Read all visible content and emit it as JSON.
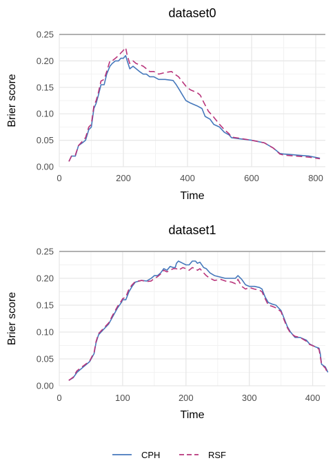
{
  "chart_data": [
    {
      "type": "line",
      "title": "dataset0",
      "xlabel": "Time",
      "ylabel": "Brier score",
      "xlim": [
        0,
        830
      ],
      "ylim": [
        0,
        0.25
      ],
      "xticks": [
        0,
        200,
        400,
        600,
        800
      ],
      "yticks": [
        0.0,
        0.05,
        0.1,
        0.15,
        0.2,
        0.25
      ],
      "xtick_labels": [
        "0",
        "200",
        "400",
        "600",
        "800"
      ],
      "ytick_labels": [
        "0.00",
        "0.05",
        "0.10",
        "0.15",
        "0.20",
        "0.25"
      ],
      "reference_line": 0.25,
      "grid": true,
      "series": [
        {
          "name": "CPH",
          "color": "#4477bb",
          "dash": "solid",
          "points": [
            [
              30,
              0.01
            ],
            [
              38,
              0.02
            ],
            [
              50,
              0.02
            ],
            [
              60,
              0.04
            ],
            [
              72,
              0.045
            ],
            [
              82,
              0.05
            ],
            [
              92,
              0.07
            ],
            [
              100,
              0.075
            ],
            [
              108,
              0.11
            ],
            [
              115,
              0.12
            ],
            [
              122,
              0.135
            ],
            [
              130,
              0.155
            ],
            [
              140,
              0.155
            ],
            [
              148,
              0.175
            ],
            [
              158,
              0.19
            ],
            [
              165,
              0.195
            ],
            [
              175,
              0.2
            ],
            [
              185,
              0.2
            ],
            [
              192,
              0.205
            ],
            [
              200,
              0.205
            ],
            [
              207,
              0.21
            ],
            [
              212,
              0.2
            ],
            [
              220,
              0.185
            ],
            [
              230,
              0.19
            ],
            [
              240,
              0.185
            ],
            [
              250,
              0.18
            ],
            [
              262,
              0.175
            ],
            [
              272,
              0.175
            ],
            [
              282,
              0.17
            ],
            [
              295,
              0.17
            ],
            [
              310,
              0.165
            ],
            [
              330,
              0.165
            ],
            [
              355,
              0.163
            ],
            [
              365,
              0.155
            ],
            [
              375,
              0.145
            ],
            [
              385,
              0.135
            ],
            [
              395,
              0.125
            ],
            [
              410,
              0.12
            ],
            [
              430,
              0.115
            ],
            [
              445,
              0.11
            ],
            [
              455,
              0.095
            ],
            [
              470,
              0.09
            ],
            [
              482,
              0.08
            ],
            [
              500,
              0.075
            ],
            [
              515,
              0.065
            ],
            [
              530,
              0.06
            ],
            [
              537,
              0.055
            ],
            [
              560,
              0.053
            ],
            [
              600,
              0.05
            ],
            [
              640,
              0.045
            ],
            [
              668,
              0.035
            ],
            [
              688,
              0.025
            ],
            [
              700,
              0.024
            ],
            [
              740,
              0.022
            ],
            [
              780,
              0.02
            ],
            [
              813,
              0.016
            ]
          ]
        },
        {
          "name": "RSF",
          "color": "#b8337a",
          "dash": "dashed",
          "points": [
            [
              30,
              0.01
            ],
            [
              38,
              0.02
            ],
            [
              50,
              0.022
            ],
            [
              60,
              0.04
            ],
            [
              72,
              0.048
            ],
            [
              82,
              0.055
            ],
            [
              92,
              0.075
            ],
            [
              100,
              0.08
            ],
            [
              108,
              0.115
            ],
            [
              115,
              0.125
            ],
            [
              122,
              0.14
            ],
            [
              130,
              0.162
            ],
            [
              140,
              0.165
            ],
            [
              148,
              0.18
            ],
            [
              158,
              0.2
            ],
            [
              165,
              0.2
            ],
            [
              175,
              0.205
            ],
            [
              185,
              0.21
            ],
            [
              192,
              0.215
            ],
            [
              200,
              0.22
            ],
            [
              207,
              0.225
            ],
            [
              212,
              0.21
            ],
            [
              220,
              0.195
            ],
            [
              230,
              0.2
            ],
            [
              240,
              0.195
            ],
            [
              250,
              0.193
            ],
            [
              262,
              0.19
            ],
            [
              272,
              0.185
            ],
            [
              282,
              0.18
            ],
            [
              295,
              0.18
            ],
            [
              310,
              0.175
            ],
            [
              330,
              0.178
            ],
            [
              350,
              0.18
            ],
            [
              360,
              0.175
            ],
            [
              372,
              0.17
            ],
            [
              385,
              0.16
            ],
            [
              398,
              0.15
            ],
            [
              410,
              0.145
            ],
            [
              430,
              0.14
            ],
            [
              440,
              0.135
            ],
            [
              452,
              0.12
            ],
            [
              465,
              0.105
            ],
            [
              480,
              0.095
            ],
            [
              500,
              0.08
            ],
            [
              515,
              0.07
            ],
            [
              530,
              0.062
            ],
            [
              537,
              0.056
            ],
            [
              560,
              0.054
            ],
            [
              600,
              0.05
            ],
            [
              640,
              0.045
            ],
            [
              668,
              0.035
            ],
            [
              688,
              0.024
            ],
            [
              700,
              0.022
            ],
            [
              740,
              0.02
            ],
            [
              780,
              0.018
            ],
            [
              813,
              0.015
            ]
          ]
        }
      ]
    },
    {
      "type": "line",
      "title": "dataset1",
      "xlabel": "Time",
      "ylabel": "Brier score",
      "xlim": [
        0,
        420
      ],
      "ylim": [
        0,
        0.25
      ],
      "xticks": [
        0,
        100,
        200,
        300,
        400
      ],
      "yticks": [
        0.0,
        0.05,
        0.1,
        0.15,
        0.2,
        0.25
      ],
      "xtick_labels": [
        "0",
        "100",
        "200",
        "300",
        "400"
      ],
      "ytick_labels": [
        "0.00",
        "0.05",
        "0.10",
        "0.15",
        "0.20",
        "0.25"
      ],
      "reference_line": 0.25,
      "grid": true,
      "series": [
        {
          "name": "CPH",
          "color": "#4477bb",
          "dash": "solid",
          "points": [
            [
              15,
              0.01
            ],
            [
              22,
              0.015
            ],
            [
              28,
              0.025
            ],
            [
              38,
              0.035
            ],
            [
              48,
              0.045
            ],
            [
              55,
              0.06
            ],
            [
              58,
              0.08
            ],
            [
              62,
              0.095
            ],
            [
              70,
              0.105
            ],
            [
              78,
              0.115
            ],
            [
              85,
              0.13
            ],
            [
              92,
              0.145
            ],
            [
              98,
              0.155
            ],
            [
              100,
              0.16
            ],
            [
              105,
              0.16
            ],
            [
              110,
              0.175
            ],
            [
              115,
              0.185
            ],
            [
              120,
              0.193
            ],
            [
              130,
              0.196
            ],
            [
              138,
              0.195
            ],
            [
              145,
              0.2
            ],
            [
              150,
              0.205
            ],
            [
              155,
              0.205
            ],
            [
              160,
              0.21
            ],
            [
              165,
              0.218
            ],
            [
              170,
              0.215
            ],
            [
              175,
              0.222
            ],
            [
              180,
              0.22
            ],
            [
              183,
              0.22
            ],
            [
              185,
              0.228
            ],
            [
              188,
              0.232
            ],
            [
              195,
              0.228
            ],
            [
              200,
              0.225
            ],
            [
              205,
              0.225
            ],
            [
              210,
              0.232
            ],
            [
              215,
              0.232
            ],
            [
              218,
              0.228
            ],
            [
              222,
              0.23
            ],
            [
              228,
              0.22
            ],
            [
              232,
              0.218
            ],
            [
              238,
              0.21
            ],
            [
              245,
              0.205
            ],
            [
              255,
              0.202
            ],
            [
              262,
              0.2
            ],
            [
              272,
              0.2
            ],
            [
              278,
              0.2
            ],
            [
              282,
              0.205
            ],
            [
              288,
              0.198
            ],
            [
              294,
              0.188
            ],
            [
              300,
              0.185
            ],
            [
              308,
              0.185
            ],
            [
              316,
              0.183
            ],
            [
              320,
              0.18
            ],
            [
              325,
              0.165
            ],
            [
              330,
              0.155
            ],
            [
              336,
              0.152
            ],
            [
              342,
              0.15
            ],
            [
              350,
              0.14
            ],
            [
              355,
              0.125
            ],
            [
              360,
              0.11
            ],
            [
              365,
              0.1
            ],
            [
              372,
              0.09
            ],
            [
              380,
              0.09
            ],
            [
              390,
              0.085
            ],
            [
              395,
              0.078
            ],
            [
              405,
              0.072
            ],
            [
              410,
              0.07
            ],
            [
              412,
              0.06
            ],
            [
              414,
              0.04
            ],
            [
              420,
              0.035
            ],
            [
              424,
              0.025
            ]
          ]
        },
        {
          "name": "RSF",
          "color": "#b8337a",
          "dash": "dashed",
          "points": [
            [
              15,
              0.01
            ],
            [
              22,
              0.016
            ],
            [
              28,
              0.028
            ],
            [
              38,
              0.037
            ],
            [
              48,
              0.046
            ],
            [
              55,
              0.062
            ],
            [
              58,
              0.082
            ],
            [
              62,
              0.097
            ],
            [
              70,
              0.107
            ],
            [
              78,
              0.117
            ],
            [
              85,
              0.133
            ],
            [
              92,
              0.148
            ],
            [
              98,
              0.158
            ],
            [
              100,
              0.162
            ],
            [
              105,
              0.165
            ],
            [
              110,
              0.18
            ],
            [
              115,
              0.188
            ],
            [
              120,
              0.194
            ],
            [
              130,
              0.196
            ],
            [
              138,
              0.194
            ],
            [
              145,
              0.195
            ],
            [
              150,
              0.2
            ],
            [
              155,
              0.203
            ],
            [
              160,
              0.208
            ],
            [
              165,
              0.215
            ],
            [
              170,
              0.212
            ],
            [
              175,
              0.215
            ],
            [
              180,
              0.218
            ],
            [
              185,
              0.218
            ],
            [
              188,
              0.215
            ],
            [
              195,
              0.22
            ],
            [
              200,
              0.218
            ],
            [
              205,
              0.215
            ],
            [
              210,
              0.22
            ],
            [
              215,
              0.218
            ],
            [
              218,
              0.215
            ],
            [
              222,
              0.218
            ],
            [
              228,
              0.21
            ],
            [
              232,
              0.205
            ],
            [
              238,
              0.2
            ],
            [
              245,
              0.196
            ],
            [
              255,
              0.198
            ],
            [
              262,
              0.195
            ],
            [
              272,
              0.193
            ],
            [
              278,
              0.19
            ],
            [
              282,
              0.198
            ],
            [
              288,
              0.185
            ],
            [
              294,
              0.18
            ],
            [
              300,
              0.183
            ],
            [
              308,
              0.18
            ],
            [
              316,
              0.178
            ],
            [
              320,
              0.175
            ],
            [
              325,
              0.162
            ],
            [
              330,
              0.15
            ],
            [
              336,
              0.148
            ],
            [
              342,
              0.145
            ],
            [
              350,
              0.138
            ],
            [
              355,
              0.122
            ],
            [
              360,
              0.108
            ],
            [
              365,
              0.098
            ],
            [
              372,
              0.092
            ],
            [
              380,
              0.09
            ],
            [
              390,
              0.083
            ],
            [
              395,
              0.077
            ],
            [
              405,
              0.072
            ],
            [
              410,
              0.068
            ],
            [
              412,
              0.055
            ],
            [
              414,
              0.04
            ],
            [
              420,
              0.033
            ],
            [
              424,
              0.022
            ]
          ]
        }
      ]
    }
  ],
  "legend": {
    "placement": "bottom",
    "items": [
      {
        "label": "CPH",
        "color": "#4477bb",
        "dash": "solid"
      },
      {
        "label": "RSF",
        "color": "#b8337a",
        "dash": "dashed"
      }
    ]
  }
}
